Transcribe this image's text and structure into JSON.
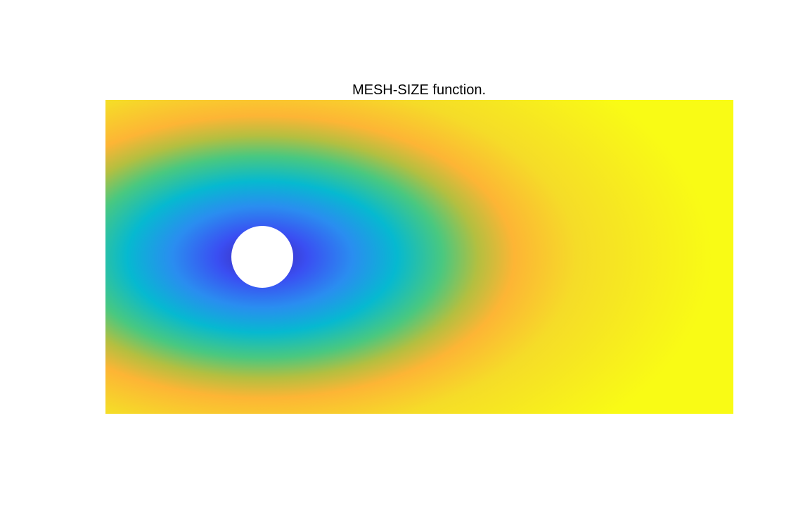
{
  "figure": {
    "title": "MESH-SIZE function."
  },
  "colors": {
    "background": "#ffffff",
    "hole": "#ffffff",
    "colormap": [
      "#3d26a8",
      "#3a4ef2",
      "#2a8df0",
      "#06b9d0",
      "#49c880",
      "#b4bf40",
      "#fdb535",
      "#f5dc28",
      "#f9fb15"
    ]
  },
  "chart_data": {
    "type": "heatmap",
    "title": "MESH-SIZE function.",
    "xlabel": "",
    "ylabel": "",
    "axes_visible": false,
    "grid": false,
    "legend": "none",
    "colorbar": "none",
    "colormap": "parula",
    "domain": {
      "shape": "rectangle with circular hole",
      "xlim": [
        0,
        2.2
      ],
      "ylim": [
        0,
        1.1
      ],
      "hole": {
        "center": [
          0.55,
          0.55
        ],
        "radius": 0.11
      }
    },
    "field": {
      "description_values": "minimum at hole, increasing outward, maximum at downstream (right) edge",
      "min_location": [
        0.55,
        0.55
      ],
      "relative_min": 0,
      "relative_max": 1
    }
  }
}
